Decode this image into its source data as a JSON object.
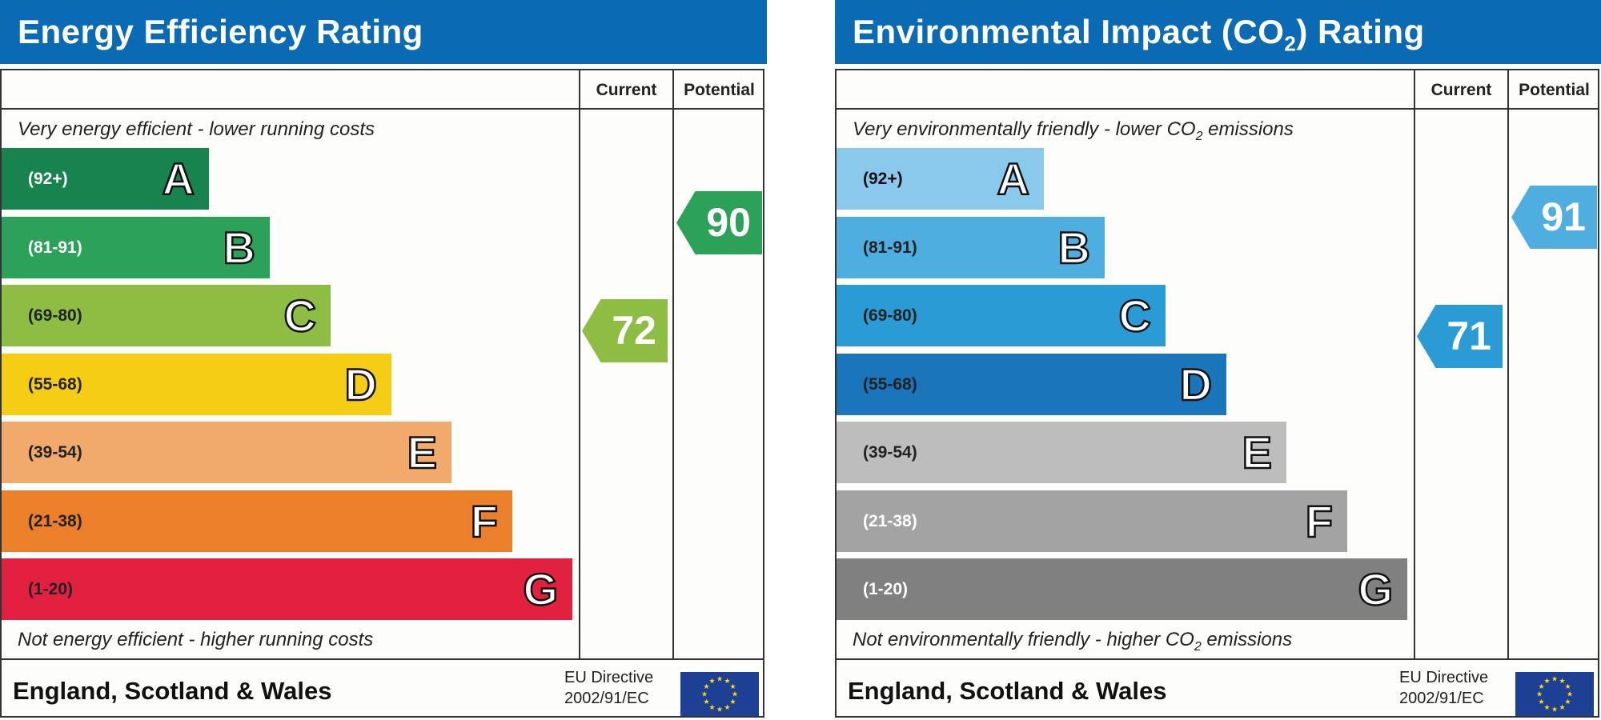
{
  "panels": [
    {
      "title": "Energy Efficiency Rating",
      "title_sub": "",
      "title_suffix": "",
      "col_current": "Current",
      "col_potential": "Potential",
      "top_note": "Very energy efficient - lower running costs",
      "top_note_sub": "",
      "top_note_suffix": "",
      "bottom_note": "Not energy efficient - higher running costs",
      "bottom_note_sub": "",
      "bottom_note_suffix": "",
      "bands": [
        {
          "letter": "A",
          "range": "(92+)",
          "color": "#17834f",
          "text_color": "#ffffff"
        },
        {
          "letter": "B",
          "range": "(81-91)",
          "color": "#2ba15a",
          "text_color": "#ffffff"
        },
        {
          "letter": "C",
          "range": "(69-80)",
          "color": "#8dbd42",
          "text_color": "#222222"
        },
        {
          "letter": "D",
          "range": "(55-68)",
          "color": "#f5cd14",
          "text_color": "#222222"
        },
        {
          "letter": "E",
          "range": "(39-54)",
          "color": "#f2a96c",
          "text_color": "#222222"
        },
        {
          "letter": "F",
          "range": "(21-38)",
          "color": "#ec7f29",
          "text_color": "#222222"
        },
        {
          "letter": "G",
          "range": "(1-20)",
          "color": "#e1213f",
          "text_color": "#222222"
        }
      ],
      "current": {
        "value": "72",
        "band": "C",
        "color": "#8dbd42"
      },
      "potential": {
        "value": "90",
        "band": "B",
        "color": "#2ba15a"
      },
      "footer": "England, Scotland & Wales",
      "eu_line1": "EU Directive",
      "eu_line2": "2002/91/EC",
      "flag_icon": "eu-flag-icon"
    },
    {
      "title": "Environmental Impact (CO",
      "title_sub": "2",
      "title_suffix": ") Rating",
      "col_current": "Current",
      "col_potential": "Potential",
      "top_note": "Very environmentally friendly - lower CO",
      "top_note_sub": "2",
      "top_note_suffix": " emissions",
      "bottom_note": "Not environmentally friendly - higher CO",
      "bottom_note_sub": "2",
      "bottom_note_suffix": " emissions",
      "bands": [
        {
          "letter": "A",
          "range": "(92+)",
          "color": "#8ac8ec",
          "text_color": "#111111"
        },
        {
          "letter": "B",
          "range": "(81-91)",
          "color": "#4eaee0",
          "text_color": "#222222"
        },
        {
          "letter": "C",
          "range": "(69-80)",
          "color": "#2a9bd4",
          "text_color": "#222222"
        },
        {
          "letter": "D",
          "range": "(55-68)",
          "color": "#1a75bb",
          "text_color": "#222222"
        },
        {
          "letter": "E",
          "range": "(39-54)",
          "color": "#bdbdbd",
          "text_color": "#222222"
        },
        {
          "letter": "F",
          "range": "(21-38)",
          "color": "#a3a3a3",
          "text_color": "#ffffff"
        },
        {
          "letter": "G",
          "range": "(1-20)",
          "color": "#808080",
          "text_color": "#ffffff"
        }
      ],
      "current": {
        "value": "71",
        "band": "C",
        "color": "#2a9bd4"
      },
      "potential": {
        "value": "91",
        "band": "B",
        "color": "#4eaee0"
      },
      "footer": "England, Scotland & Wales",
      "eu_line1": "EU Directive",
      "eu_line2": "2002/91/EC",
      "flag_icon": "eu-flag-icon"
    }
  ]
}
